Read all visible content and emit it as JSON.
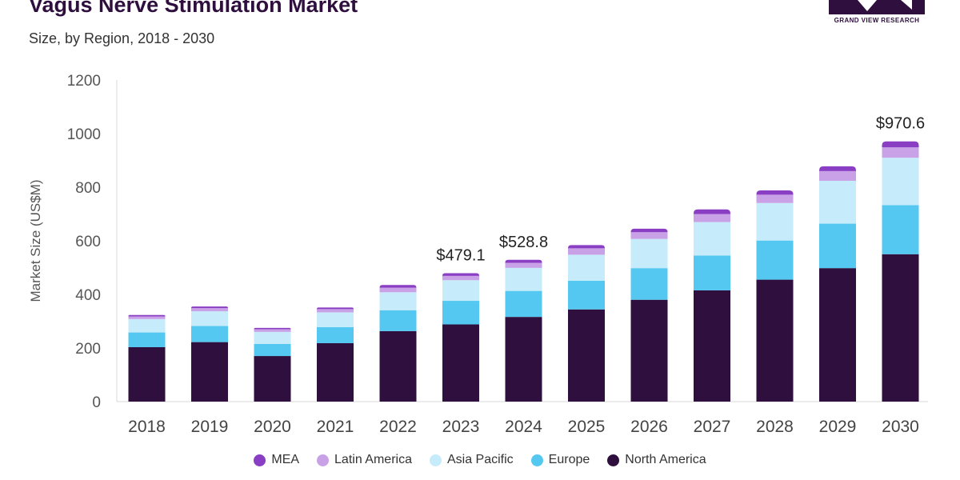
{
  "header": {
    "title": "Vagus Nerve Stimulation Market",
    "subtitle": "Size, by Region, 2018 - 2030"
  },
  "logo": {
    "text": "GRAND VIEW RESEARCH",
    "color": "#2e0f3e"
  },
  "chart_data": {
    "type": "bar",
    "stacked": true,
    "categories": [
      "2018",
      "2019",
      "2020",
      "2021",
      "2022",
      "2023",
      "2024",
      "2025",
      "2026",
      "2027",
      "2028",
      "2029",
      "2030"
    ],
    "ylabel": "Market Size (US$M)",
    "xlabel": "",
    "ylim": [
      0,
      1200
    ],
    "yticks": [
      0,
      200,
      400,
      600,
      800,
      1000,
      1200
    ],
    "grid": false,
    "legend_position": "bottom",
    "series": [
      {
        "name": "North America",
        "color": "#2e0f3e",
        "values": [
          203,
          222,
          170,
          218,
          263,
          288,
          316,
          344,
          380,
          415,
          455,
          498,
          550
        ]
      },
      {
        "name": "Europe",
        "color": "#54c8f0",
        "values": [
          55,
          60,
          45,
          60,
          78,
          88,
          97,
          107,
          118,
          130,
          146,
          166,
          183
        ]
      },
      {
        "name": "Asia Pacific",
        "color": "#c6ebfa",
        "values": [
          50,
          55,
          45,
          55,
          67,
          77,
          86,
          97,
          109,
          125,
          140,
          160,
          177
        ]
      },
      {
        "name": "Latin America",
        "color": "#c9a1e6",
        "values": [
          10,
          12,
          10,
          12,
          17,
          16,
          19,
          24,
          25,
          30,
          31,
          36,
          39
        ]
      },
      {
        "name": "MEA",
        "color": "#8a3ec4",
        "values": [
          5,
          6,
          5,
          6,
          10,
          10,
          11,
          12,
          13,
          17,
          16,
          18,
          22
        ]
      }
    ],
    "annotations": [
      {
        "category": "2023",
        "text": "$479.1",
        "value": 479.1
      },
      {
        "category": "2024",
        "text": "$528.8",
        "value": 528.8
      },
      {
        "category": "2030",
        "text": "$970.6",
        "value": 970.6
      }
    ],
    "legend_order": [
      "MEA",
      "Latin America",
      "Asia Pacific",
      "Europe",
      "North America"
    ]
  }
}
